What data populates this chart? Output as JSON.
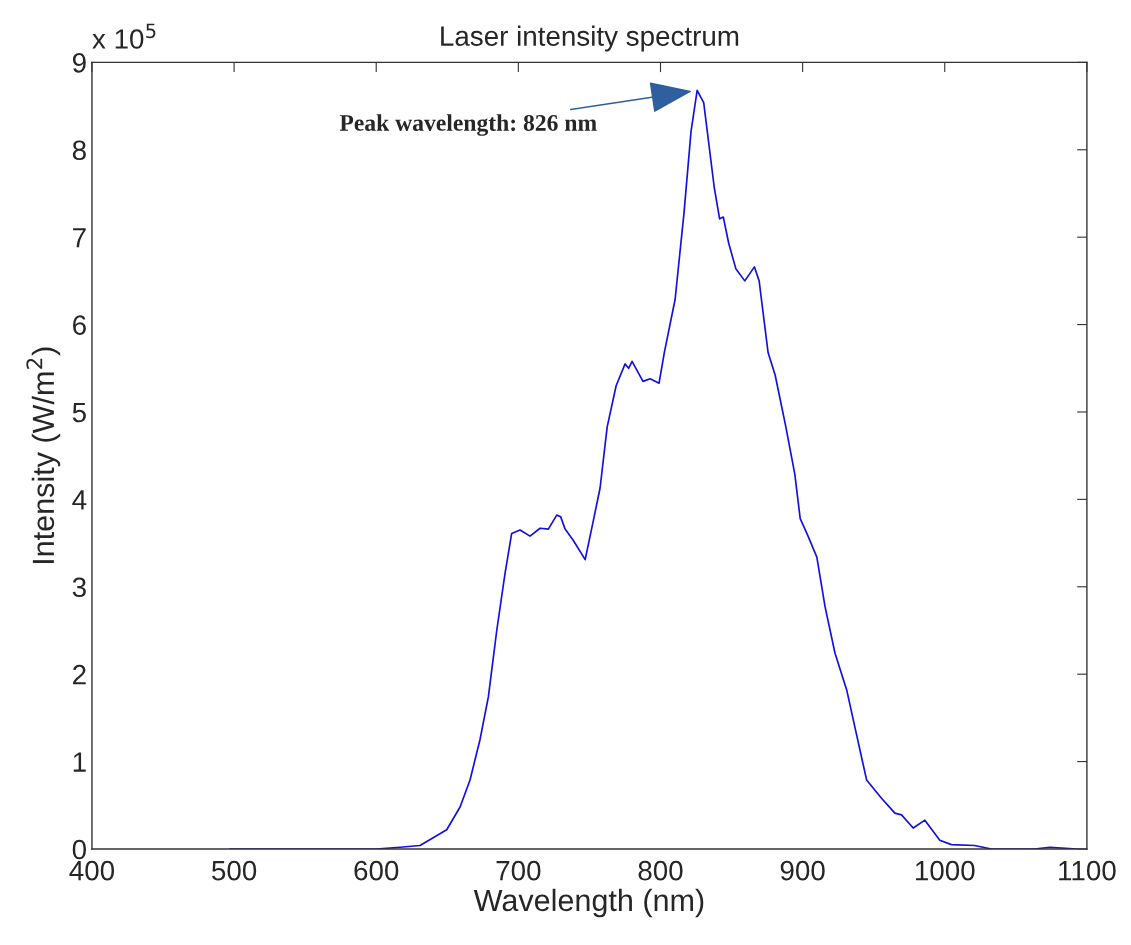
{
  "chart_data": {
    "type": "line",
    "title": "Laser intensity spectrum",
    "xlabel": "Wavelength (nm)",
    "ylabel": "Intensity (W/m$^{2}$)",
    "xlim": [
      400,
      1100
    ],
    "xticks": [
      400,
      500,
      600,
      700,
      800,
      900,
      1000,
      1100
    ],
    "ylim": [
      0,
      9
    ],
    "yticks": [
      0,
      1,
      2,
      3,
      4,
      5,
      6,
      7,
      8,
      9
    ],
    "annotations": [
      {
        "text": "x 10$^{5}$"
      },
      {
        "text": "Peak wavelength: 826 nm",
        "x": 826,
        "y": 8.68
      }
    ],
    "grid": false,
    "legend": false,
    "marker": "none",
    "line_style": "solid",
    "series": [
      {
        "color": "#1010e0",
        "x": [
          497,
          560,
          600,
          616.8,
          630.8,
          649.6,
          659,
          666,
          673,
          678.9,
          684.8,
          690.6,
          695.3,
          701.2,
          708.2,
          715.3,
          721.1,
          727,
          729.8,
          732.9,
          738.7,
          747,
          752.8,
          757.5,
          762.5,
          768.8,
          775.1,
          777.6,
          780,
          787.7,
          792.7,
          799,
          802.7,
          810.3,
          816.5,
          821.5,
          825.8,
          830.4,
          837.9,
          841.6,
          844.2,
          848,
          853,
          859.3,
          866.1,
          869.4,
          875.7,
          880.7,
          888.2,
          894.5,
          898.3,
          903.3,
          910,
          915.8,
          922.8,
          931,
          936.7,
          945,
          955.5,
          964.9,
          969.6,
          977.8,
          986,
          996.5,
          1004.7,
          1021,
          1032.8,
          1063,
          1074,
          1093
        ],
        "values": [
          0,
          0,
          0,
          0.02,
          0.04,
          0.22,
          0.48,
          0.79,
          1.25,
          1.74,
          2.5,
          3.15,
          3.61,
          3.65,
          3.58,
          3.67,
          3.66,
          3.82,
          3.8,
          3.66,
          3.53,
          3.31,
          3.76,
          4.13,
          4.83,
          5.3,
          5.55,
          5.5,
          5.58,
          5.35,
          5.38,
          5.33,
          5.68,
          6.29,
          7.27,
          8.21,
          8.68,
          8.54,
          7.56,
          7.21,
          7.23,
          6.93,
          6.64,
          6.5,
          6.66,
          6.5,
          5.68,
          5.42,
          4.83,
          4.29,
          3.78,
          3.6,
          3.34,
          2.77,
          2.24,
          1.82,
          1.4,
          0.79,
          0.58,
          0.41,
          0.39,
          0.24,
          0.33,
          0.1,
          0.05,
          0.04,
          0,
          0,
          0.02,
          0
        ]
      }
    ]
  }
}
